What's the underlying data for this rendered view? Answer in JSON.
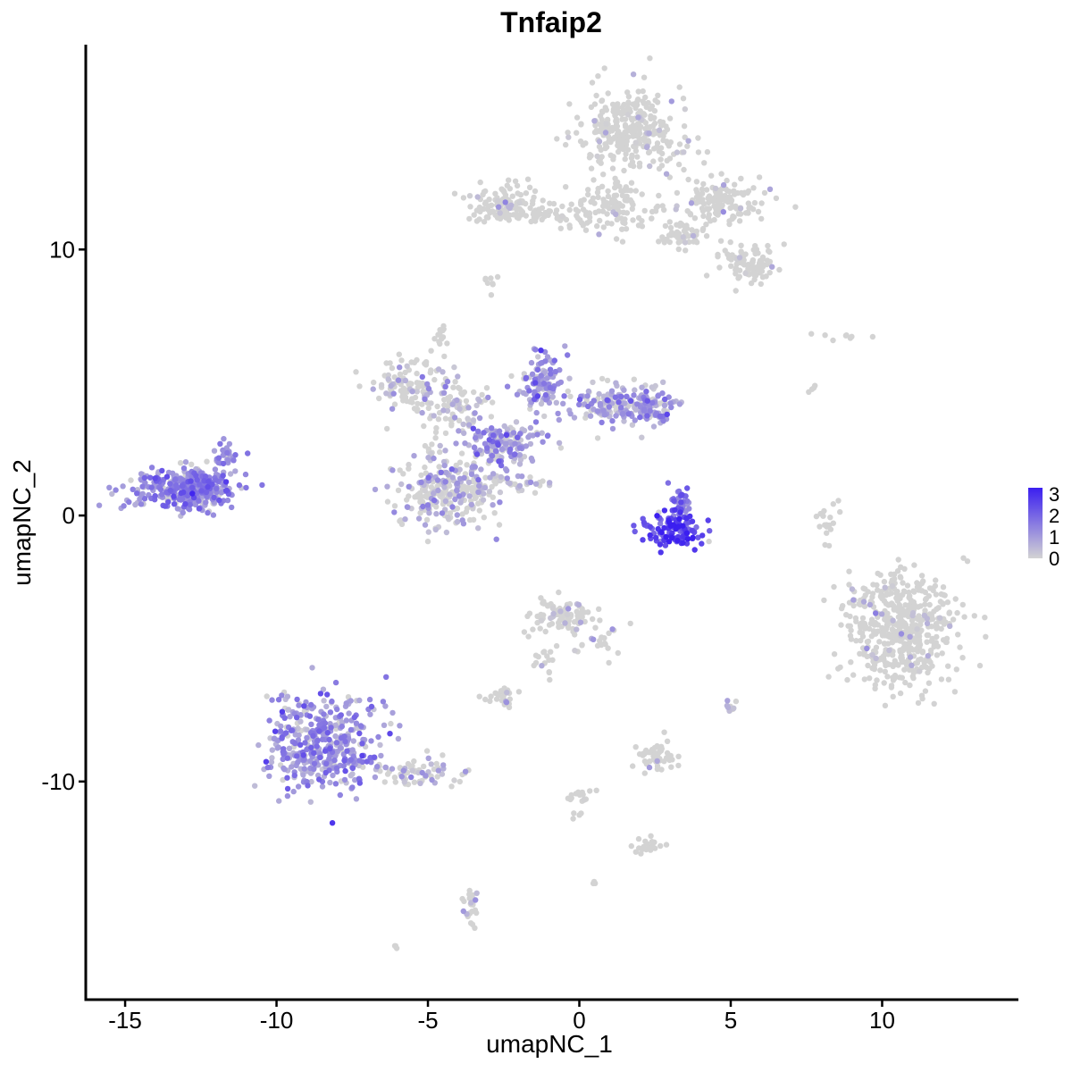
{
  "chart_data": {
    "type": "scatter",
    "title": "Tnfaip2",
    "xlabel": "umapNC_1",
    "ylabel": "umapNC_2",
    "xlim": [
      -16.3,
      14.5
    ],
    "ylim": [
      -18.2,
      17.7
    ],
    "xticks": [
      -15,
      -10,
      -5,
      0,
      5,
      10
    ],
    "yticks": [
      -10,
      0,
      10
    ],
    "xtick_labels": [
      "-15",
      "-10",
      "-5",
      "0",
      "5",
      "10"
    ],
    "ytick_labels": [
      "-10",
      "0",
      "10"
    ],
    "color_scale": {
      "low_color": "#d3d3d3",
      "high_color": "#3b1ff0",
      "range": [
        0,
        3.3
      ],
      "legend_ticks": [
        0,
        1,
        2,
        3
      ],
      "legend_tick_labels": [
        "0",
        "1",
        "2",
        "3"
      ],
      "legend_position": "right"
    },
    "grid": false,
    "clusters": [
      {
        "cx": 1.8,
        "cy": 14.5,
        "sx": 1.2,
        "sy": 1.1,
        "n": 320,
        "expr": 0.02
      },
      {
        "cx": 1.2,
        "cy": 11.5,
        "sx": 1.2,
        "sy": 0.6,
        "n": 110,
        "expr": 0.02
      },
      {
        "cx": 4.8,
        "cy": 11.8,
        "sx": 0.8,
        "sy": 0.6,
        "n": 130,
        "expr": 0.03
      },
      {
        "cx": 5.6,
        "cy": 9.5,
        "sx": 0.6,
        "sy": 0.5,
        "n": 90,
        "expr": 0.02
      },
      {
        "cx": 3.5,
        "cy": 10.5,
        "sx": 0.6,
        "sy": 0.4,
        "n": 50,
        "expr": 0.01
      },
      {
        "cx": -2.5,
        "cy": 11.7,
        "sx": 0.8,
        "sy": 0.45,
        "n": 120,
        "expr": 0.03
      },
      {
        "cx": -1.0,
        "cy": 11.3,
        "sx": 0.9,
        "sy": 0.25,
        "n": 40,
        "expr": 0.0
      },
      {
        "cx": -2.9,
        "cy": 8.8,
        "sx": 0.15,
        "sy": 0.3,
        "n": 8,
        "expr": 0.0
      },
      {
        "cx": -13.0,
        "cy": 1.0,
        "sx": 1.1,
        "sy": 0.5,
        "n": 380,
        "expr": 1.3
      },
      {
        "cx": -11.7,
        "cy": 2.3,
        "sx": 0.35,
        "sy": 0.3,
        "n": 25,
        "expr": 1.2
      },
      {
        "cx": -4.3,
        "cy": 1.0,
        "sx": 1.1,
        "sy": 1.0,
        "n": 300,
        "expr": 0.55
      },
      {
        "cx": -2.5,
        "cy": 2.7,
        "sx": 0.8,
        "sy": 0.5,
        "n": 150,
        "expr": 0.9
      },
      {
        "cx": -5.7,
        "cy": 5.0,
        "sx": 1.0,
        "sy": 0.7,
        "n": 110,
        "expr": 0.35
      },
      {
        "cx": -4.0,
        "cy": 4.0,
        "sx": 0.7,
        "sy": 0.6,
        "n": 80,
        "expr": 0.4
      },
      {
        "cx": -1.2,
        "cy": 5.0,
        "sx": 0.5,
        "sy": 0.8,
        "n": 110,
        "expr": 1.1
      },
      {
        "cx": 1.2,
        "cy": 4.2,
        "sx": 1.0,
        "sy": 0.5,
        "n": 150,
        "expr": 0.8
      },
      {
        "cx": 2.4,
        "cy": 4.0,
        "sx": 0.5,
        "sy": 0.5,
        "n": 70,
        "expr": 1.0
      },
      {
        "cx": -4.5,
        "cy": 6.8,
        "sx": 0.2,
        "sy": 0.3,
        "n": 12,
        "expr": 0.05
      },
      {
        "cx": -1.8,
        "cy": 1.2,
        "sx": 0.6,
        "sy": 0.3,
        "n": 25,
        "expr": 0.5
      },
      {
        "cx": 3.1,
        "cy": -0.6,
        "sx": 0.7,
        "sy": 0.45,
        "n": 110,
        "expr": 2.5
      },
      {
        "cx": 3.3,
        "cy": 0.5,
        "sx": 0.3,
        "sy": 0.4,
        "n": 40,
        "expr": 1.7
      },
      {
        "cx": -8.5,
        "cy": -8.5,
        "sx": 1.2,
        "sy": 1.2,
        "n": 430,
        "expr": 1.1
      },
      {
        "cx": -5.5,
        "cy": -9.7,
        "sx": 1.0,
        "sy": 0.35,
        "n": 70,
        "expr": 0.45
      },
      {
        "cx": -0.7,
        "cy": -3.8,
        "sx": 0.7,
        "sy": 0.5,
        "n": 90,
        "expr": 0.12
      },
      {
        "cx": 0.6,
        "cy": -4.7,
        "sx": 0.5,
        "sy": 0.5,
        "n": 25,
        "expr": 0.3
      },
      {
        "cx": -1.2,
        "cy": -5.5,
        "sx": 0.25,
        "sy": 0.5,
        "n": 15,
        "expr": 0.05
      },
      {
        "cx": -2.6,
        "cy": -6.9,
        "sx": 0.4,
        "sy": 0.25,
        "n": 25,
        "expr": 0.25
      },
      {
        "cx": 2.5,
        "cy": -9.0,
        "sx": 0.5,
        "sy": 0.4,
        "n": 50,
        "expr": 0.04
      },
      {
        "cx": 2.3,
        "cy": -12.4,
        "sx": 0.3,
        "sy": 0.2,
        "n": 20,
        "expr": 0.0
      },
      {
        "cx": 0.0,
        "cy": -10.8,
        "sx": 0.3,
        "sy": 0.5,
        "n": 20,
        "expr": 0.05
      },
      {
        "cx": -3.6,
        "cy": -14.7,
        "sx": 0.25,
        "sy": 0.5,
        "n": 25,
        "expr": 0.2
      },
      {
        "cx": 5.0,
        "cy": -7.2,
        "sx": 0.15,
        "sy": 0.2,
        "n": 12,
        "expr": 0.7
      },
      {
        "cx": 8.2,
        "cy": -0.3,
        "sx": 0.25,
        "sy": 0.6,
        "n": 18,
        "expr": 0.05
      },
      {
        "cx": 10.6,
        "cy": -4.3,
        "sx": 1.2,
        "sy": 1.5,
        "n": 520,
        "expr": 0.02
      },
      {
        "cx": 8.4,
        "cy": 6.7,
        "sx": 0.6,
        "sy": 0.1,
        "n": 8,
        "expr": 0.0
      },
      {
        "cx": 7.7,
        "cy": 4.7,
        "sx": 0.1,
        "sy": 0.2,
        "n": 4,
        "expr": 0.0
      },
      {
        "cx": -6.1,
        "cy": -16.2,
        "sx": 0.05,
        "sy": 0.05,
        "n": 3,
        "expr": 0.0
      },
      {
        "cx": 0.5,
        "cy": -13.8,
        "sx": 0.05,
        "sy": 0.05,
        "n": 3,
        "expr": 0.0
      }
    ]
  }
}
